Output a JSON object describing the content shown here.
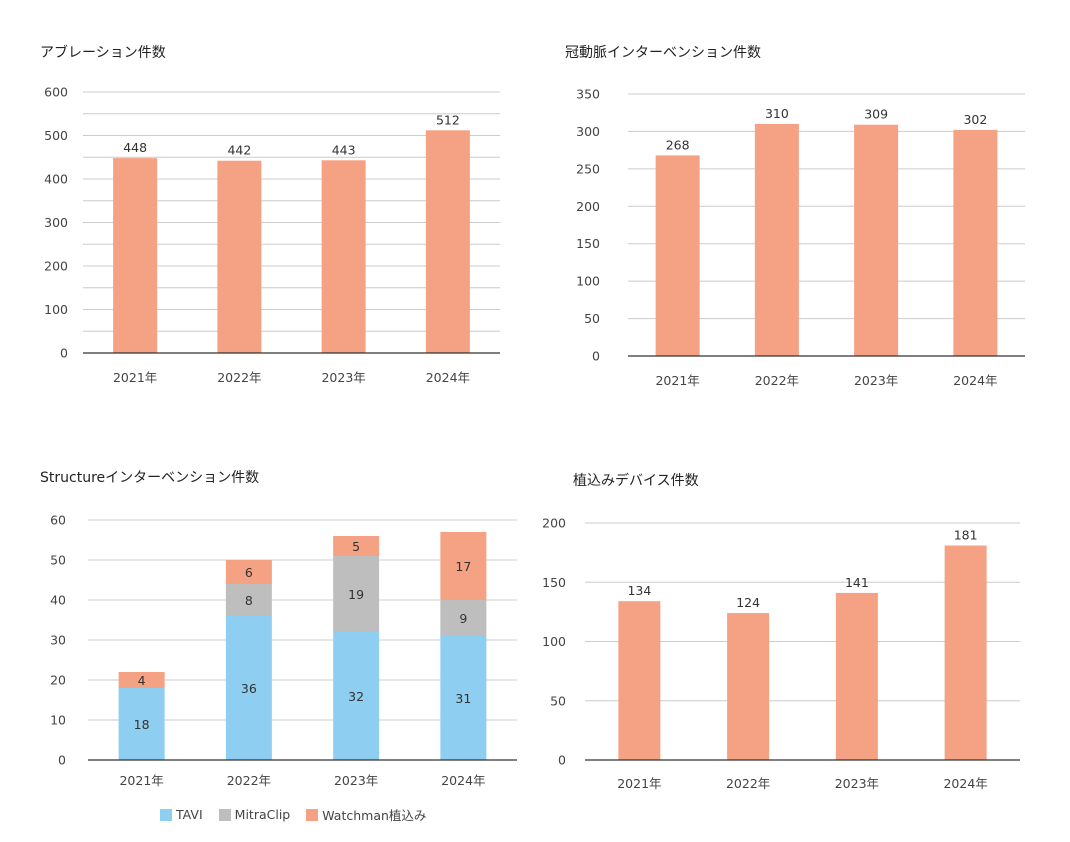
{
  "colors": {
    "bar": "#F5A183",
    "tavi": "#8ECEF0",
    "mitraclip": "#BEBEBE",
    "watchman": "#F5A183",
    "grid": "#CCCCCC",
    "axis": "#333333"
  },
  "legend": {
    "tavi": "TAVI",
    "mitraclip": "MitraClip",
    "watchman": "Watchman植込み"
  },
  "chart_data": [
    {
      "type": "bar",
      "title": "アブレーション件数",
      "categories": [
        "2021年",
        "2022年",
        "2023年",
        "2024年"
      ],
      "values": [
        448,
        442,
        443,
        512
      ],
      "ylim": [
        0,
        600
      ],
      "yticks": [
        0,
        100,
        200,
        300,
        400,
        500,
        600
      ],
      "minor_gridlines": true,
      "grid": true,
      "legend": "none"
    },
    {
      "type": "bar",
      "title": "冠動脈インターベンション件数",
      "categories": [
        "2021年",
        "2022年",
        "2023年",
        "2024年"
      ],
      "values": [
        268,
        310,
        309,
        302
      ],
      "ylim": [
        0,
        350
      ],
      "yticks": [
        0,
        50,
        100,
        150,
        200,
        250,
        300,
        350
      ],
      "grid": true,
      "legend": "none"
    },
    {
      "type": "bar",
      "stacked": true,
      "title": "Structureインターベンション件数",
      "categories": [
        "2021年",
        "2022年",
        "2023年",
        "2024年"
      ],
      "series": [
        {
          "name": "TAVI",
          "values": [
            18,
            36,
            32,
            31
          ]
        },
        {
          "name": "MitraClip",
          "values": [
            0,
            8,
            19,
            9
          ]
        },
        {
          "name": "Watchman植込み",
          "values": [
            4,
            6,
            5,
            17
          ]
        }
      ],
      "ylim": [
        0,
        60
      ],
      "yticks": [
        0,
        10,
        20,
        30,
        40,
        50,
        60
      ],
      "grid": true,
      "legend": "bottom"
    },
    {
      "type": "bar",
      "title": "植込みデバイス件数",
      "categories": [
        "2021年",
        "2022年",
        "2023年",
        "2024年"
      ],
      "values": [
        134,
        124,
        141,
        181
      ],
      "ylim": [
        0,
        200
      ],
      "yticks": [
        0,
        50,
        100,
        150,
        200
      ],
      "grid": true,
      "legend": "none"
    }
  ]
}
